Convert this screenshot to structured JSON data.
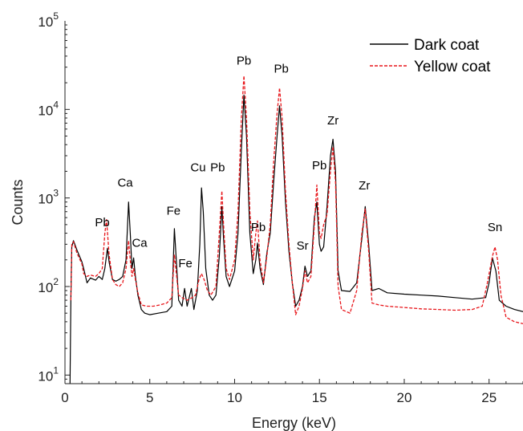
{
  "chart_data": {
    "type": "line",
    "xlabel": "Energy (keV)",
    "ylabel": "Counts",
    "xlim": [
      0,
      27
    ],
    "ylim": [
      8,
      100000
    ],
    "yscale": "log",
    "x_ticks": [
      {
        "value": 0,
        "label": "0"
      },
      {
        "value": 5,
        "label": "5"
      },
      {
        "value": 10,
        "label": "10"
      },
      {
        "value": 15,
        "label": "15"
      },
      {
        "value": 20,
        "label": "20"
      },
      {
        "value": 25,
        "label": "25"
      }
    ],
    "y_ticks": [
      {
        "value": 10,
        "base": "10",
        "exp": "1"
      },
      {
        "value": 100,
        "base": "10",
        "exp": "2"
      },
      {
        "value": 1000,
        "base": "10",
        "exp": "3"
      },
      {
        "value": 10000,
        "base": "10",
        "exp": "4"
      },
      {
        "value": 100000,
        "base": "10",
        "exp": "5"
      }
    ],
    "grid": false,
    "legend_position": "top-right",
    "series": [
      {
        "name": "Dark coat",
        "color": "#000000",
        "style": "solid",
        "points": [
          [
            0.3,
            8
          ],
          [
            0.35,
            80
          ],
          [
            0.4,
            280
          ],
          [
            0.5,
            330
          ],
          [
            0.7,
            260
          ],
          [
            1.0,
            190
          ],
          [
            1.1,
            160
          ],
          [
            1.3,
            110
          ],
          [
            1.5,
            125
          ],
          [
            1.8,
            118
          ],
          [
            2.0,
            130
          ],
          [
            2.2,
            120
          ],
          [
            2.35,
            160
          ],
          [
            2.5,
            270
          ],
          [
            2.6,
            190
          ],
          [
            2.8,
            120
          ],
          [
            3.0,
            115
          ],
          [
            3.2,
            120
          ],
          [
            3.4,
            130
          ],
          [
            3.6,
            200
          ],
          [
            3.75,
            900
          ],
          [
            3.85,
            400
          ],
          [
            3.95,
            160
          ],
          [
            4.05,
            210
          ],
          [
            4.15,
            130
          ],
          [
            4.3,
            80
          ],
          [
            4.5,
            55
          ],
          [
            4.7,
            50
          ],
          [
            5.0,
            48
          ],
          [
            5.5,
            50
          ],
          [
            6.0,
            52
          ],
          [
            6.3,
            60
          ],
          [
            6.45,
            450
          ],
          [
            6.55,
            220
          ],
          [
            6.7,
            70
          ],
          [
            6.9,
            60
          ],
          [
            7.05,
            95
          ],
          [
            7.2,
            60
          ],
          [
            7.45,
            95
          ],
          [
            7.6,
            55
          ],
          [
            7.8,
            90
          ],
          [
            7.95,
            300
          ],
          [
            8.05,
            1300
          ],
          [
            8.15,
            700
          ],
          [
            8.3,
            160
          ],
          [
            8.5,
            80
          ],
          [
            8.7,
            70
          ],
          [
            8.9,
            80
          ],
          [
            9.1,
            220
          ],
          [
            9.25,
            800
          ],
          [
            9.35,
            350
          ],
          [
            9.5,
            130
          ],
          [
            9.7,
            100
          ],
          [
            10.0,
            150
          ],
          [
            10.2,
            400
          ],
          [
            10.4,
            3500
          ],
          [
            10.55,
            14500
          ],
          [
            10.7,
            5000
          ],
          [
            10.9,
            400
          ],
          [
            11.1,
            140
          ],
          [
            11.25,
            200
          ],
          [
            11.35,
            310
          ],
          [
            11.5,
            160
          ],
          [
            11.7,
            105
          ],
          [
            11.9,
            240
          ],
          [
            12.1,
            400
          ],
          [
            12.3,
            1500
          ],
          [
            12.5,
            5000
          ],
          [
            12.65,
            11000
          ],
          [
            12.8,
            5000
          ],
          [
            13.0,
            900
          ],
          [
            13.2,
            250
          ],
          [
            13.4,
            110
          ],
          [
            13.6,
            60
          ],
          [
            13.8,
            70
          ],
          [
            14.0,
            100
          ],
          [
            14.15,
            170
          ],
          [
            14.3,
            130
          ],
          [
            14.5,
            150
          ],
          [
            14.7,
            600
          ],
          [
            14.85,
            900
          ],
          [
            15.0,
            300
          ],
          [
            15.1,
            250
          ],
          [
            15.25,
            280
          ],
          [
            15.45,
            800
          ],
          [
            15.65,
            3000
          ],
          [
            15.8,
            4600
          ],
          [
            15.95,
            2000
          ],
          [
            16.1,
            150
          ],
          [
            16.3,
            90
          ],
          [
            16.8,
            88
          ],
          [
            17.2,
            110
          ],
          [
            17.5,
            350
          ],
          [
            17.7,
            800
          ],
          [
            17.9,
            300
          ],
          [
            18.1,
            90
          ],
          [
            18.5,
            95
          ],
          [
            19.0,
            85
          ],
          [
            20.0,
            82
          ],
          [
            21.0,
            80
          ],
          [
            22.0,
            78
          ],
          [
            23.0,
            75
          ],
          [
            24.0,
            72
          ],
          [
            24.8,
            75
          ],
          [
            25.0,
            110
          ],
          [
            25.2,
            210
          ],
          [
            25.4,
            150
          ],
          [
            25.6,
            70
          ],
          [
            26.0,
            60
          ],
          [
            26.5,
            55
          ],
          [
            27.0,
            52
          ]
        ]
      },
      {
        "name": "Yellow coat",
        "color": "#e8161b",
        "style": "dashed",
        "points": [
          [
            0.35,
            70
          ],
          [
            0.4,
            300
          ],
          [
            0.5,
            320
          ],
          [
            0.7,
            240
          ],
          [
            1.0,
            180
          ],
          [
            1.1,
            140
          ],
          [
            1.3,
            130
          ],
          [
            1.5,
            135
          ],
          [
            1.8,
            130
          ],
          [
            2.0,
            140
          ],
          [
            2.2,
            160
          ],
          [
            2.35,
            400
          ],
          [
            2.45,
            570
          ],
          [
            2.6,
            230
          ],
          [
            2.8,
            120
          ],
          [
            3.0,
            105
          ],
          [
            3.2,
            100
          ],
          [
            3.4,
            110
          ],
          [
            3.6,
            160
          ],
          [
            3.75,
            330
          ],
          [
            3.85,
            200
          ],
          [
            3.95,
            130
          ],
          [
            4.05,
            160
          ],
          [
            4.15,
            120
          ],
          [
            4.3,
            85
          ],
          [
            4.5,
            62
          ],
          [
            4.8,
            60
          ],
          [
            5.2,
            60
          ],
          [
            5.6,
            62
          ],
          [
            6.0,
            65
          ],
          [
            6.3,
            75
          ],
          [
            6.45,
            230
          ],
          [
            6.55,
            150
          ],
          [
            6.7,
            80
          ],
          [
            6.9,
            75
          ],
          [
            7.2,
            70
          ],
          [
            7.5,
            75
          ],
          [
            7.7,
            80
          ],
          [
            7.9,
            120
          ],
          [
            8.05,
            140
          ],
          [
            8.2,
            120
          ],
          [
            8.4,
            90
          ],
          [
            8.6,
            80
          ],
          [
            8.9,
            100
          ],
          [
            9.1,
            400
          ],
          [
            9.25,
            1200
          ],
          [
            9.35,
            500
          ],
          [
            9.5,
            160
          ],
          [
            9.7,
            120
          ],
          [
            10.0,
            200
          ],
          [
            10.2,
            700
          ],
          [
            10.4,
            8000
          ],
          [
            10.55,
            24000
          ],
          [
            10.7,
            8000
          ],
          [
            10.9,
            700
          ],
          [
            11.1,
            200
          ],
          [
            11.25,
            400
          ],
          [
            11.35,
            550
          ],
          [
            11.5,
            200
          ],
          [
            11.7,
            110
          ],
          [
            11.9,
            220
          ],
          [
            12.1,
            500
          ],
          [
            12.3,
            2500
          ],
          [
            12.5,
            9000
          ],
          [
            12.65,
            17500
          ],
          [
            12.8,
            8000
          ],
          [
            13.0,
            1200
          ],
          [
            13.2,
            300
          ],
          [
            13.4,
            110
          ],
          [
            13.6,
            48
          ],
          [
            13.8,
            60
          ],
          [
            14.0,
            95
          ],
          [
            14.15,
            150
          ],
          [
            14.3,
            110
          ],
          [
            14.5,
            130
          ],
          [
            14.7,
            500
          ],
          [
            14.85,
            1400
          ],
          [
            15.0,
            400
          ],
          [
            15.1,
            350
          ],
          [
            15.25,
            500
          ],
          [
            15.45,
            650
          ],
          [
            15.65,
            2000
          ],
          [
            15.8,
            3800
          ],
          [
            15.95,
            1500
          ],
          [
            16.1,
            100
          ],
          [
            16.3,
            55
          ],
          [
            16.8,
            50
          ],
          [
            17.2,
            90
          ],
          [
            17.5,
            400
          ],
          [
            17.7,
            750
          ],
          [
            17.9,
            250
          ],
          [
            18.1,
            65
          ],
          [
            18.5,
            62
          ],
          [
            19.0,
            60
          ],
          [
            20.0,
            58
          ],
          [
            21.0,
            56
          ],
          [
            22.0,
            55
          ],
          [
            23.0,
            54
          ],
          [
            24.0,
            55
          ],
          [
            24.6,
            60
          ],
          [
            24.9,
            110
          ],
          [
            25.2,
            220
          ],
          [
            25.35,
            280
          ],
          [
            25.5,
            200
          ],
          [
            25.7,
            80
          ],
          [
            26.0,
            45
          ],
          [
            26.5,
            40
          ],
          [
            27.0,
            38
          ]
        ]
      }
    ],
    "annotations": [
      {
        "text": "Pb",
        "x": 2.2,
        "y": 480
      },
      {
        "text": "Ca",
        "x": 3.55,
        "y": 1350
      },
      {
        "text": "Ca",
        "x": 4.4,
        "y": 280
      },
      {
        "text": "Fe",
        "x": 6.4,
        "y": 650
      },
      {
        "text": "Fe",
        "x": 7.1,
        "y": 165
      },
      {
        "text": "Cu",
        "x": 7.85,
        "y": 2000
      },
      {
        "text": "Pb",
        "x": 9.0,
        "y": 2000
      },
      {
        "text": "Pb",
        "x": 10.55,
        "y": 32000
      },
      {
        "text": "Pb",
        "x": 11.4,
        "y": 420
      },
      {
        "text": "Pb",
        "x": 12.75,
        "y": 26000
      },
      {
        "text": "Sr",
        "x": 14.0,
        "y": 260
      },
      {
        "text": "Pb",
        "x": 15.0,
        "y": 2100
      },
      {
        "text": "Zr",
        "x": 15.8,
        "y": 6800
      },
      {
        "text": "Zr",
        "x": 17.65,
        "y": 1250
      },
      {
        "text": "Sn",
        "x": 25.35,
        "y": 420
      }
    ]
  }
}
